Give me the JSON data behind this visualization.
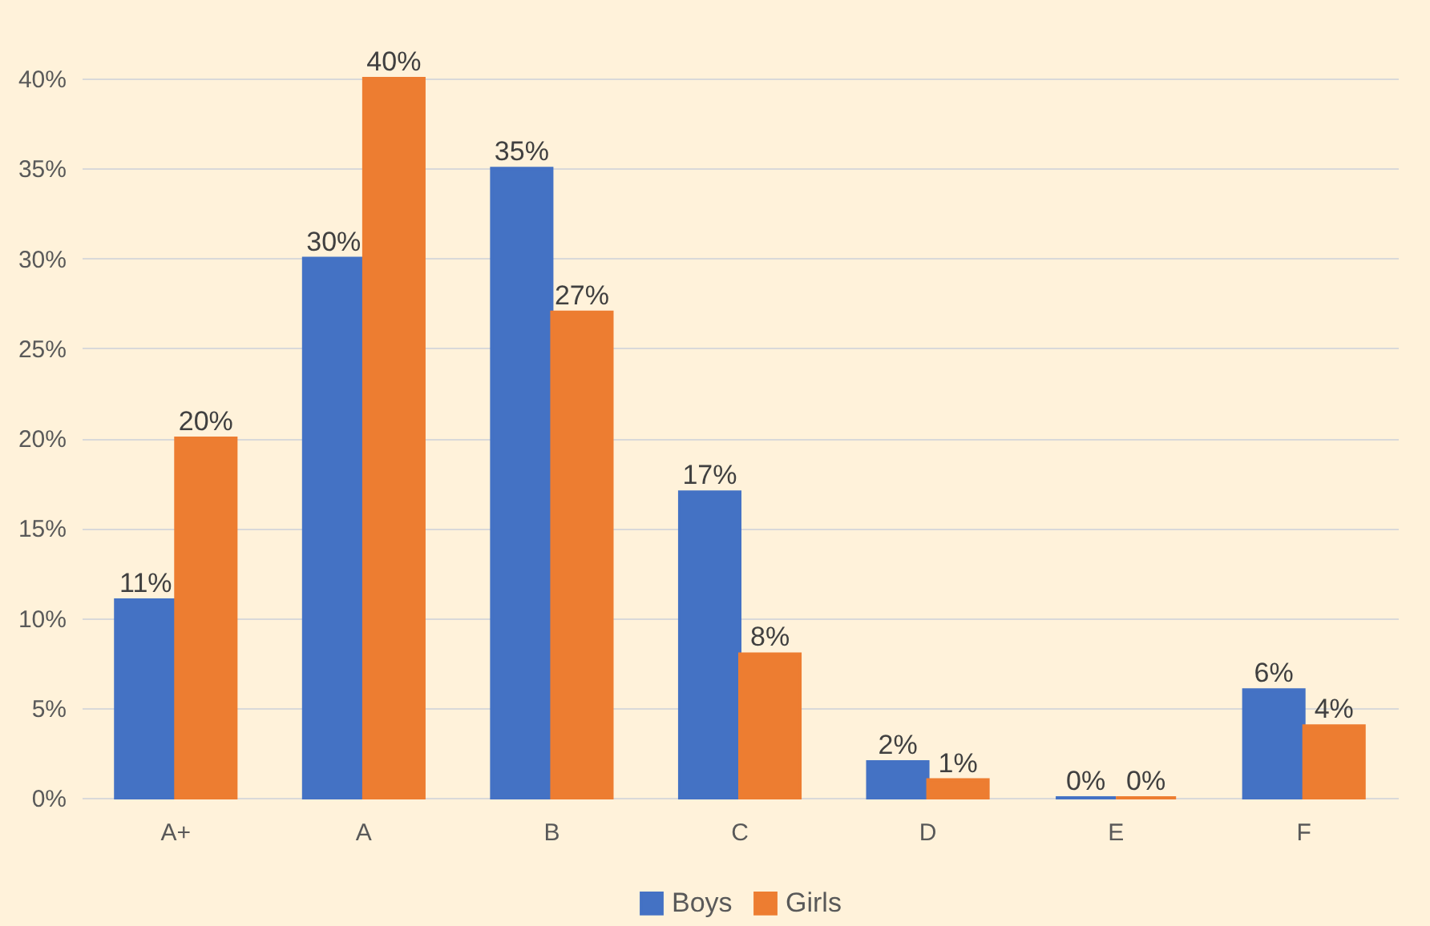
{
  "chart_data": {
    "type": "bar",
    "categories": [
      "A+",
      "A",
      "B",
      "C",
      "D",
      "E",
      "F"
    ],
    "series": [
      {
        "name": "Boys",
        "color": "#4472c4",
        "values": [
          11,
          30,
          35,
          17,
          2,
          0,
          6
        ],
        "value_labels": [
          "11%",
          "30%",
          "35%",
          "17%",
          "2%",
          "0%",
          "6%"
        ]
      },
      {
        "name": "Girls",
        "color": "#ed7d31",
        "values": [
          20,
          40,
          27,
          8,
          1,
          0,
          4
        ],
        "value_labels": [
          "20%",
          "40%",
          "27%",
          "8%",
          "1%",
          "0%",
          "4%"
        ]
      }
    ],
    "ylim": [
      0,
      40
    ],
    "yticks": [
      {
        "value": 0,
        "label": "0%"
      },
      {
        "value": 5,
        "label": "5%"
      },
      {
        "value": 10,
        "label": "10%"
      },
      {
        "value": 15,
        "label": "15%"
      },
      {
        "value": 20,
        "label": "20%"
      },
      {
        "value": 25,
        "label": "25%"
      },
      {
        "value": 30,
        "label": "30%"
      },
      {
        "value": 35,
        "label": "35%"
      },
      {
        "value": 40,
        "label": "40%"
      }
    ],
    "grid": "y",
    "legend": "bottom"
  }
}
